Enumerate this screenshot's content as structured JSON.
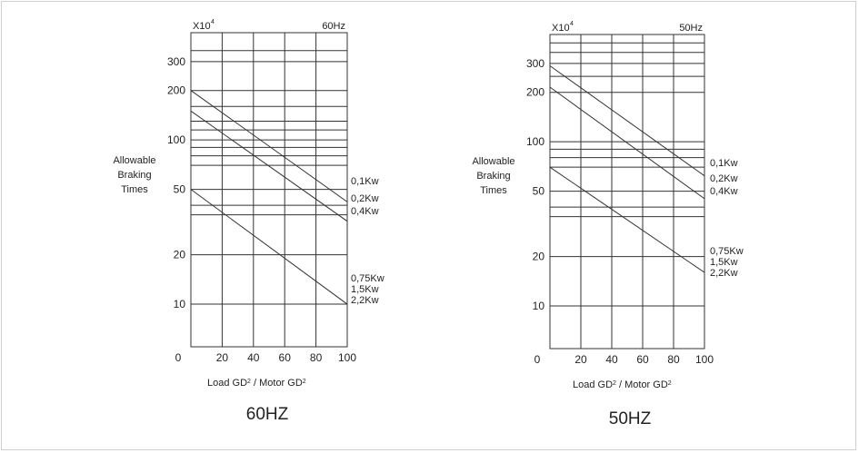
{
  "chart_data": [
    {
      "type": "line",
      "title": "60Hz",
      "caption": "60HZ",
      "multiplier": "X10",
      "multiplier_exp": "4",
      "ylabel": [
        "Allowable",
        "Braking",
        "Times"
      ],
      "xlabel": {
        "a": "Load GD",
        "b": "2",
        "c": " / Motor GD",
        "d": "2"
      },
      "x_ticks": [
        0,
        20,
        40,
        60,
        80,
        100
      ],
      "y_ticks": [
        10,
        20,
        50,
        100,
        200,
        300
      ],
      "xlim": [
        0,
        100
      ],
      "y_scale": "log",
      "grid": true,
      "series": [
        {
          "name": "0.1Kw",
          "x": [
            0,
            100
          ],
          "y": [
            200,
            42
          ]
        },
        {
          "name": "0.2Kw / 0.4Kw",
          "x": [
            0,
            100
          ],
          "y": [
            150,
            32
          ]
        },
        {
          "name": "0.75Kw / 1.5Kw / 2.2Kw",
          "x": [
            0,
            100
          ],
          "y": [
            50,
            10
          ]
        }
      ],
      "end_labels": [
        {
          "lines": [
            "0,1Kw"
          ]
        },
        {
          "lines": [
            "0,2Kw",
            "0,4Kw"
          ]
        },
        {
          "lines": [
            "0,75Kw",
            "1,5Kw",
            "2,2Kw"
          ]
        }
      ]
    },
    {
      "type": "line",
      "title": "50Hz",
      "caption": "50HZ",
      "multiplier": "X10",
      "multiplier_exp": "4",
      "ylabel": [
        "Allowable",
        "Braking",
        "Times"
      ],
      "xlabel": {
        "a": "Load GD",
        "b": "2",
        "c": " / Motor GD",
        "d": "2"
      },
      "x_ticks": [
        0,
        20,
        40,
        60,
        80,
        100
      ],
      "y_ticks": [
        10,
        20,
        50,
        100,
        200,
        300
      ],
      "xlim": [
        0,
        100
      ],
      "y_scale": "log",
      "grid": true,
      "series": [
        {
          "name": "0.1Kw",
          "x": [
            0,
            100
          ],
          "y": [
            290,
            62
          ]
        },
        {
          "name": "0.2Kw / 0.4Kw",
          "x": [
            0,
            100
          ],
          "y": [
            215,
            45
          ]
        },
        {
          "name": "0.75Kw / 1.5Kw / 2.2Kw",
          "x": [
            0,
            100
          ],
          "y": [
            70,
            16
          ]
        }
      ],
      "end_labels": [
        {
          "lines": [
            "0,1Kw"
          ]
        },
        {
          "lines": [
            "0,2Kw",
            "0,4Kw"
          ]
        },
        {
          "lines": [
            "0,75Kw",
            "1,5Kw",
            "2,2Kw"
          ]
        }
      ]
    }
  ]
}
